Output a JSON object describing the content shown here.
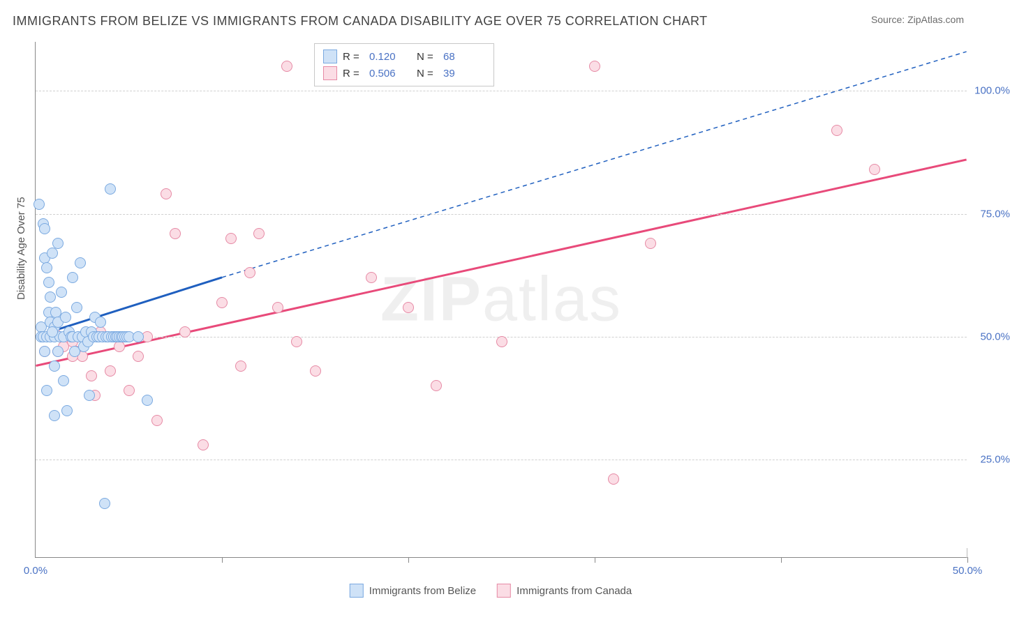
{
  "title": "IMMIGRANTS FROM BELIZE VS IMMIGRANTS FROM CANADA DISABILITY AGE OVER 75 CORRELATION CHART",
  "source": "Source: ZipAtlas.com",
  "y_axis_title": "Disability Age Over 75",
  "watermark_bold": "ZIP",
  "watermark_light": "atlas",
  "chart": {
    "type": "scatter",
    "xlim": [
      0,
      50
    ],
    "ylim": [
      5,
      110
    ],
    "x_ticks": [
      0,
      10,
      20,
      30,
      40,
      50
    ],
    "x_tick_labels": {
      "0": "0.0%",
      "50": "50.0%"
    },
    "y_ticks": [
      25,
      50,
      75,
      100
    ],
    "y_tick_labels": {
      "25": "25.0%",
      "50": "50.0%",
      "75": "75.0%",
      "100": "100.0%"
    },
    "background_color": "#ffffff",
    "grid_color": "#d0d0d0",
    "axis_color": "#888888"
  },
  "series": {
    "belize": {
      "label": "Immigrants from Belize",
      "fill": "#cfe2f7",
      "stroke": "#7aa9e0",
      "line_color": "#1f5fbf",
      "line_style": "solid-then-dashed",
      "r_value": "0.120",
      "n_value": "68",
      "trend": {
        "start": [
          0,
          50
        ],
        "solid_end": [
          10,
          62
        ],
        "dash_end": [
          50,
          108
        ]
      },
      "points": [
        [
          0.2,
          77
        ],
        [
          0.3,
          52
        ],
        [
          0.3,
          50
        ],
        [
          0.4,
          73
        ],
        [
          0.4,
          50
        ],
        [
          0.5,
          72
        ],
        [
          0.5,
          66
        ],
        [
          0.6,
          64
        ],
        [
          0.6,
          50
        ],
        [
          0.6,
          39
        ],
        [
          0.7,
          61
        ],
        [
          0.7,
          55
        ],
        [
          0.8,
          58
        ],
        [
          0.8,
          53
        ],
        [
          0.8,
          50
        ],
        [
          0.9,
          67
        ],
        [
          1.0,
          52
        ],
        [
          1.0,
          50
        ],
        [
          1.0,
          44
        ],
        [
          1.1,
          55
        ],
        [
          1.2,
          69
        ],
        [
          1.2,
          53
        ],
        [
          1.3,
          50
        ],
        [
          1.4,
          59
        ],
        [
          1.5,
          50
        ],
        [
          1.5,
          41
        ],
        [
          1.6,
          54
        ],
        [
          1.7,
          35
        ],
        [
          1.8,
          51
        ],
        [
          1.9,
          50
        ],
        [
          2.0,
          62
        ],
        [
          2.0,
          50
        ],
        [
          2.1,
          47
        ],
        [
          2.2,
          56
        ],
        [
          2.3,
          50
        ],
        [
          2.4,
          65
        ],
        [
          2.5,
          50
        ],
        [
          2.6,
          48
        ],
        [
          2.7,
          51
        ],
        [
          2.8,
          49
        ],
        [
          2.9,
          38
        ],
        [
          3.0,
          51
        ],
        [
          3.1,
          50
        ],
        [
          3.2,
          54
        ],
        [
          3.3,
          50
        ],
        [
          3.4,
          50
        ],
        [
          3.5,
          53
        ],
        [
          3.6,
          50
        ],
        [
          3.7,
          16
        ],
        [
          3.8,
          50
        ],
        [
          3.9,
          50
        ],
        [
          4.0,
          80
        ],
        [
          4.1,
          50
        ],
        [
          4.2,
          50
        ],
        [
          4.3,
          50
        ],
        [
          4.4,
          50
        ],
        [
          4.5,
          50
        ],
        [
          4.6,
          50
        ],
        [
          4.7,
          50
        ],
        [
          4.8,
          50
        ],
        [
          4.9,
          50
        ],
        [
          5.0,
          50
        ],
        [
          5.5,
          50
        ],
        [
          6.0,
          37
        ],
        [
          1.0,
          34
        ],
        [
          0.5,
          47
        ],
        [
          1.2,
          47
        ],
        [
          0.9,
          51
        ]
      ]
    },
    "canada": {
      "label": "Immigrants from Canada",
      "fill": "#fbdde5",
      "stroke": "#e68aa5",
      "line_color": "#e84a7a",
      "line_style": "solid",
      "r_value": "0.506",
      "n_value": "39",
      "trend": {
        "start": [
          0,
          44
        ],
        "end": [
          50,
          86
        ]
      },
      "points": [
        [
          0.5,
          47
        ],
        [
          1.0,
          51
        ],
        [
          1.2,
          47
        ],
        [
          1.5,
          48
        ],
        [
          2.0,
          49
        ],
        [
          2.2,
          47
        ],
        [
          2.5,
          46
        ],
        [
          3.0,
          42
        ],
        [
          3.5,
          51
        ],
        [
          4.0,
          43
        ],
        [
          4.5,
          48
        ],
        [
          5.0,
          39
        ],
        [
          5.5,
          46
        ],
        [
          6.0,
          50
        ],
        [
          6.5,
          33
        ],
        [
          7.0,
          79
        ],
        [
          7.5,
          71
        ],
        [
          8.0,
          51
        ],
        [
          9.0,
          28
        ],
        [
          10.0,
          57
        ],
        [
          10.5,
          70
        ],
        [
          11.0,
          44
        ],
        [
          11.5,
          63
        ],
        [
          12.0,
          71
        ],
        [
          13.0,
          56
        ],
        [
          13.5,
          105
        ],
        [
          14.0,
          49
        ],
        [
          15.0,
          43
        ],
        [
          18.0,
          62
        ],
        [
          20.0,
          56
        ],
        [
          21.5,
          40
        ],
        [
          25.0,
          49
        ],
        [
          30.0,
          105
        ],
        [
          31.0,
          21
        ],
        [
          33.0,
          69
        ],
        [
          43.0,
          92
        ],
        [
          45.0,
          84
        ],
        [
          3.2,
          38
        ],
        [
          2.0,
          46
        ]
      ]
    }
  },
  "legend_top": {
    "r_label": "R =",
    "n_label": "N ="
  }
}
